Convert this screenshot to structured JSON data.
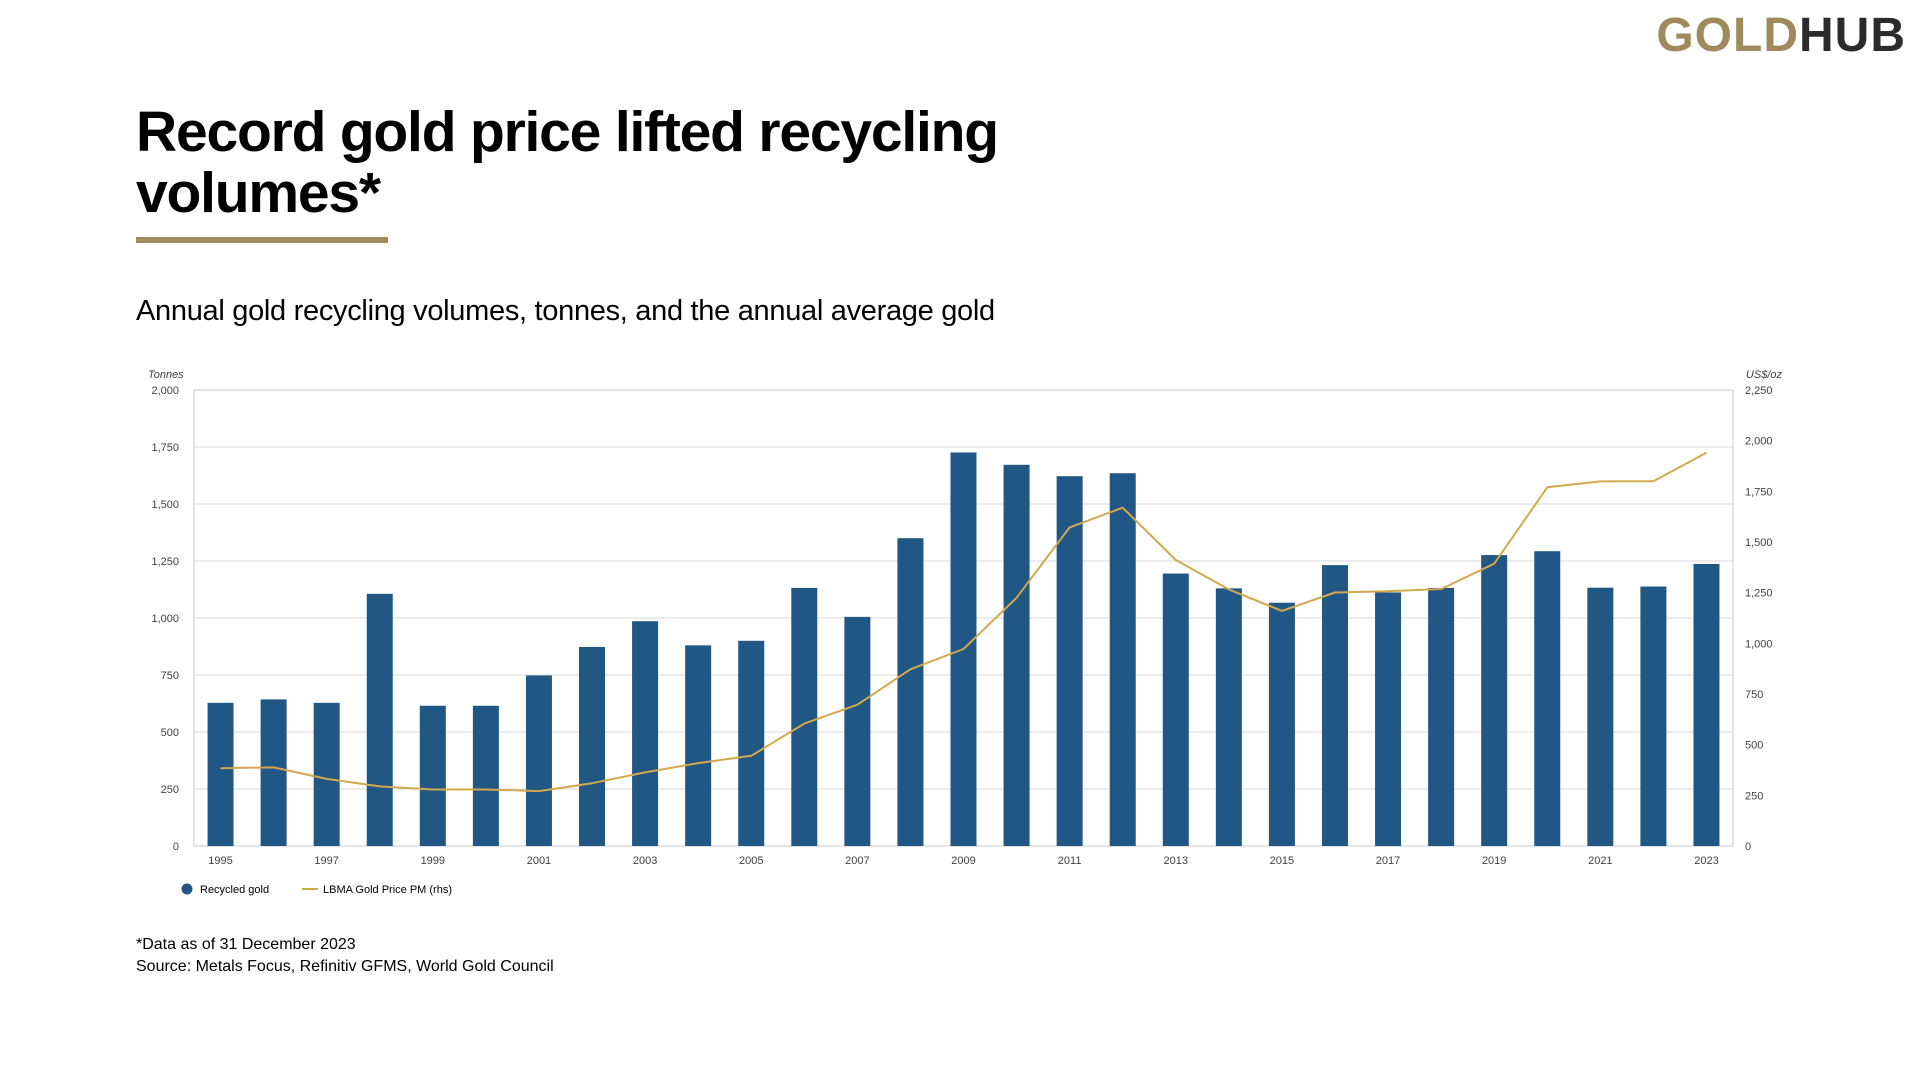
{
  "logo": {
    "part1": "GOLD",
    "part2": "HUB"
  },
  "title": "Record gold price lifted recycling volumes*",
  "subtitle": "Annual gold recycling volumes, tonnes, and the annual average gold",
  "footnotes": {
    "note": "*Data as of 31 December 2023",
    "source": "Source: Metals Focus, Refinitiv GFMS, World Gold Council"
  },
  "colors": {
    "bar": "#215784",
    "line": "#d4a84d",
    "accent": "#9e8a5d",
    "grid": "#d9d9d9"
  },
  "chart_data": {
    "type": "bar",
    "title": "Annual gold recycling volumes, tonnes, and the annual average gold",
    "xlabel": "",
    "ylabel": "Tonnes",
    "y2label": "US$/oz",
    "ylim": [
      0,
      2000
    ],
    "y2lim": [
      0,
      2250
    ],
    "yticks": [
      "0",
      "250",
      "500",
      "750",
      "1,000",
      "1,250",
      "1,500",
      "1,750",
      "2,000"
    ],
    "y2ticks": [
      "0",
      "250",
      "500",
      "750",
      "1,000",
      "1,250",
      "1,500",
      "1,750",
      "2,000",
      "2,250"
    ],
    "categories": [
      "1995",
      "1996",
      "1997",
      "1998",
      "1999",
      "2000",
      "2001",
      "2002",
      "2003",
      "2004",
      "2005",
      "2006",
      "2007",
      "2008",
      "2009",
      "2010",
      "2011",
      "2012",
      "2013",
      "2014",
      "2015",
      "2016",
      "2017",
      "2018",
      "2019",
      "2020",
      "2021",
      "2022",
      "2023"
    ],
    "xtick_labels": [
      "1995",
      "1997",
      "1999",
      "2001",
      "2003",
      "2005",
      "2007",
      "2009",
      "2011",
      "2013",
      "2015",
      "2017",
      "2019",
      "2021",
      "2023"
    ],
    "legend_position": "bottom-left",
    "grid": true,
    "series": [
      {
        "name": "Recycled gold",
        "type": "bar",
        "axis": "left",
        "values": [
          628,
          643,
          628,
          1106,
          615,
          615,
          748,
          873,
          986,
          880,
          900,
          1132,
          1005,
          1350,
          1726,
          1672,
          1622,
          1635,
          1195,
          1130,
          1067,
          1232,
          1112,
          1132,
          1276,
          1293,
          1133,
          1138,
          1237
        ]
      },
      {
        "name": "LBMA Gold Price PM (rhs)",
        "type": "line",
        "axis": "right",
        "values": [
          384,
          388,
          331,
          294,
          279,
          279,
          271,
          310,
          363,
          409,
          445,
          604,
          697,
          872,
          972,
          1225,
          1572,
          1669,
          1411,
          1266,
          1160,
          1251,
          1257,
          1268,
          1393,
          1770,
          1799,
          1800,
          1941
        ]
      }
    ]
  }
}
